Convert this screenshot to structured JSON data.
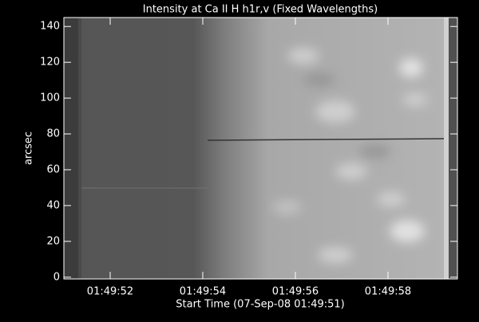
{
  "chart_data": {
    "type": "image",
    "title": "Intensity at Ca II H h1r,v (Fixed Wavelengths)",
    "x_label": "Start Time (07-Sep-08 01:49:51)",
    "y_label": "arcsec",
    "xlim": [
      51,
      59.5
    ],
    "xticks": [
      {
        "value": 52,
        "label": "01:49:52"
      },
      {
        "value": 54,
        "label": "01:49:54"
      },
      {
        "value": 56,
        "label": "01:49:56"
      },
      {
        "value": 58,
        "label": "01:49:58"
      }
    ],
    "ylim": [
      -1,
      145
    ],
    "yticks": [
      0,
      20,
      40,
      60,
      80,
      100,
      120,
      140
    ]
  }
}
